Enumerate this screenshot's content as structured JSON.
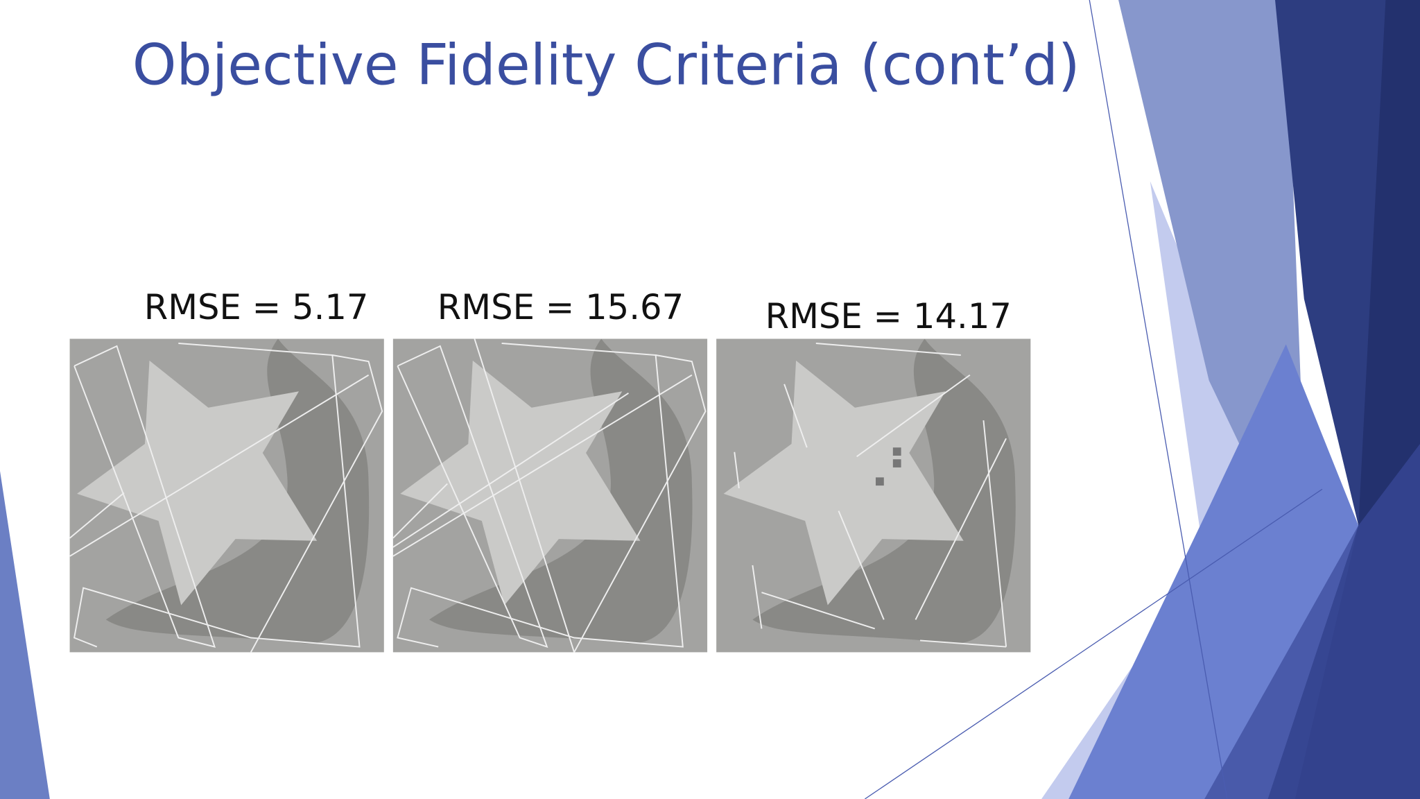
{
  "header": {
    "title": "Objective Fidelity Criteria (cont’d)"
  },
  "panels": [
    {
      "caption": "RMSE = 5.17"
    },
    {
      "caption": "RMSE = 15.67"
    },
    {
      "caption": "RMSE = 14.17"
    }
  ]
}
